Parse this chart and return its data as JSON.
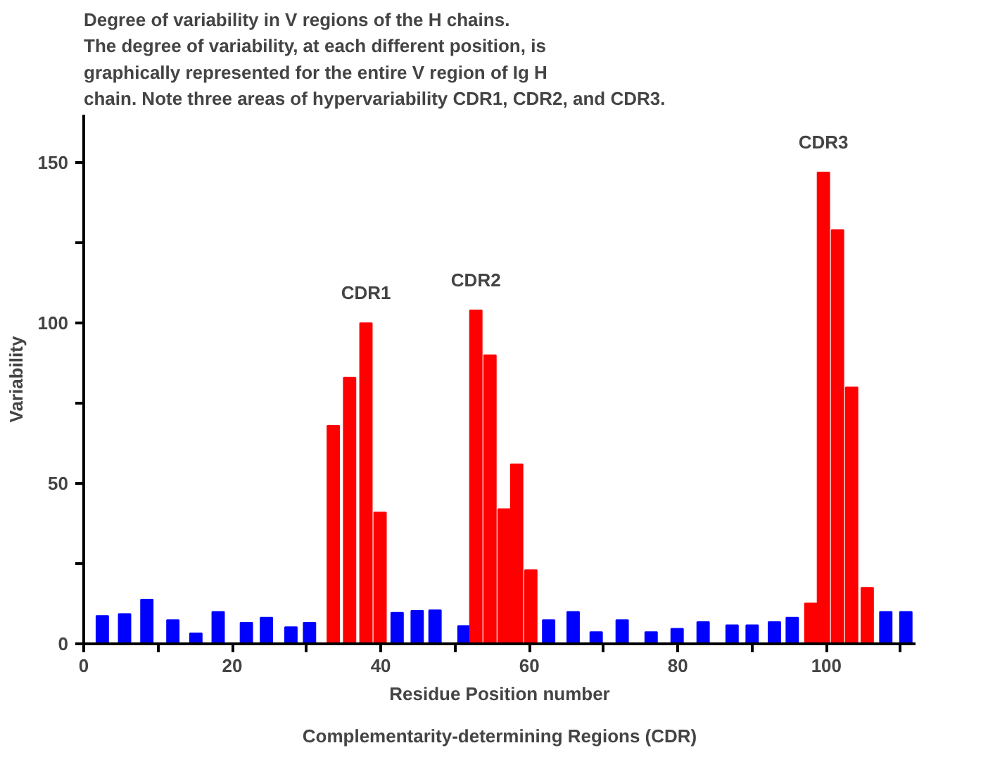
{
  "chart_data": {
    "type": "bar",
    "title": "Degree of variability in V regions of the H chains.\nThe degree of variability, at each different position, is\ngraphically represented for the entire V region of Ig H\nchain. Note three areas of hypervariability CDR1, CDR2, and CDR3.",
    "xlabel": "Residue Position number",
    "ylabel": "Variability",
    "x": [
      2.5,
      5.5,
      8.5,
      12,
      15.1,
      18.1,
      21.9,
      24.6,
      27.9,
      30.4,
      33.6,
      35.8,
      38,
      39.9,
      42.2,
      44.9,
      47.3,
      51.2,
      52.8,
      54.7,
      56.6,
      58.3,
      60.2,
      62.6,
      65.9,
      69,
      72.5,
      76.4,
      79.9,
      83.4,
      87.3,
      90,
      93,
      95.4,
      97.9,
      99.6,
      101.5,
      103.4,
      105.5,
      108,
      110.7
    ],
    "values": [
      8.7,
      9.3,
      13.8,
      7.4,
      3.3,
      10,
      6.6,
      8.2,
      5.2,
      6.6,
      68,
      83,
      100,
      41,
      9.7,
      10.3,
      10.5,
      5.6,
      104,
      90,
      42,
      56,
      23,
      7.4,
      10,
      3.7,
      7.4,
      3.7,
      4.7,
      6.8,
      5.8,
      5.8,
      6.8,
      8.2,
      12.6,
      147,
      129,
      80,
      17.5,
      10,
      10
    ],
    "colors": [
      "#0000ff",
      "#0000ff",
      "#0000ff",
      "#0000ff",
      "#0000ff",
      "#0000ff",
      "#0000ff",
      "#0000ff",
      "#0000ff",
      "#0000ff",
      "#ff0000",
      "#ff0000",
      "#ff0000",
      "#ff0000",
      "#0000ff",
      "#0000ff",
      "#0000ff",
      "#0000ff",
      "#ff0000",
      "#ff0000",
      "#ff0000",
      "#ff0000",
      "#ff0000",
      "#0000ff",
      "#0000ff",
      "#0000ff",
      "#0000ff",
      "#0000ff",
      "#0000ff",
      "#0000ff",
      "#0000ff",
      "#0000ff",
      "#0000ff",
      "#0000ff",
      "#ff0000",
      "#ff0000",
      "#ff0000",
      "#ff0000",
      "#ff0000",
      "#0000ff",
      "#0000ff"
    ],
    "xlim": [
      0,
      112
    ],
    "ylim": [
      0,
      165
    ],
    "xticks": [
      0,
      {
        "value": 10,
        "label": null
      },
      20,
      {
        "value": 30,
        "label": null
      },
      40,
      {
        "value": 50,
        "label": null
      },
      60,
      {
        "value": 70,
        "label": null
      },
      80,
      {
        "value": 90,
        "label": null
      },
      100,
      {
        "value": 110,
        "label": null
      }
    ],
    "yticks": [
      0,
      {
        "value": 25,
        "label": null
      },
      50,
      {
        "value": 75,
        "label": null
      },
      100,
      {
        "value": 125,
        "label": null
      },
      150
    ],
    "grid": false,
    "annotations": [
      {
        "text": "CDR1",
        "x": 38,
        "y": 100
      },
      {
        "text": "CDR2",
        "x": 52.8,
        "y": 104
      },
      {
        "text": "CDR3",
        "x": 99.6,
        "y": 147
      },
      "Complementarity-determining Regions (CDR)"
    ]
  }
}
